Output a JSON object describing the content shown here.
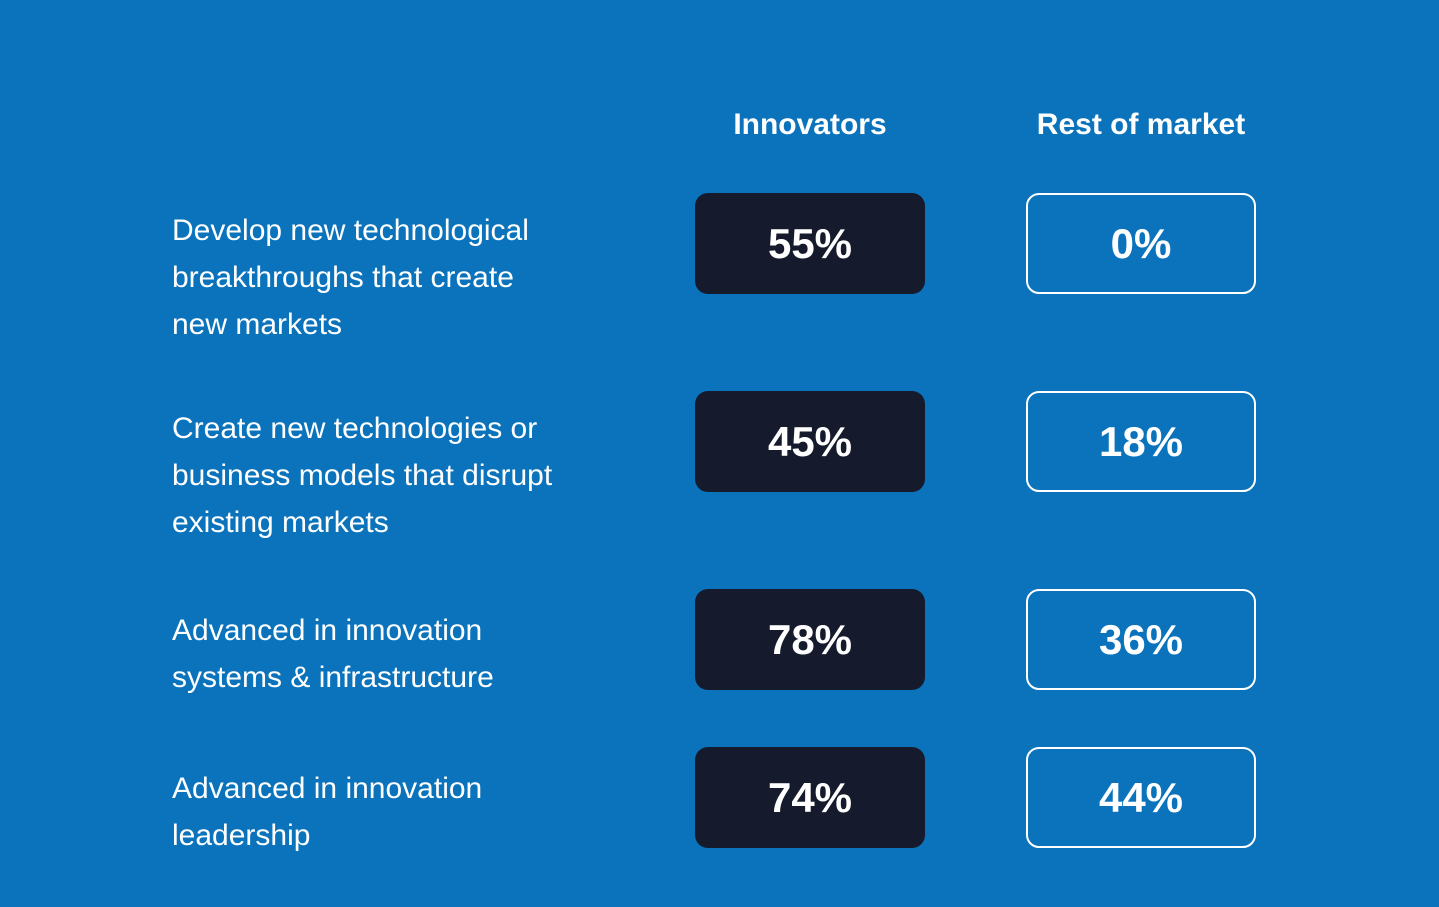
{
  "colors": {
    "background": "#0a73bc",
    "box_dark": "#151b2c",
    "text": "#ffffff"
  },
  "columns": {
    "innovators": "Innovators",
    "rest_of_market": "Rest of market"
  },
  "rows": [
    {
      "label": "Develop new technological\nbreakthroughs that create\nnew markets",
      "innovators": "55%",
      "rest_of_market": "0%"
    },
    {
      "label": "Create new technologies or\nbusiness models that disrupt\nexisting markets",
      "innovators": "45%",
      "rest_of_market": "18%"
    },
    {
      "label": "Advanced in innovation\nsystems & infrastructure",
      "innovators": "78%",
      "rest_of_market": "36%"
    },
    {
      "label": "Advanced in innovation\nleadership",
      "innovators": "74%",
      "rest_of_market": "44%"
    }
  ],
  "chart_data": {
    "type": "table",
    "categories": [
      "Develop new technological breakthroughs that create new markets",
      "Create new technologies or business models that disrupt existing markets",
      "Advanced in innovation systems & infrastructure",
      "Advanced in innovation leadership"
    ],
    "series": [
      {
        "name": "Innovators",
        "values": [
          55,
          45,
          78,
          74
        ]
      },
      {
        "name": "Rest of market",
        "values": [
          0,
          18,
          36,
          44
        ]
      }
    ],
    "value_unit": "percent",
    "layout": "matrix of labeled percentage boxes; filled dark boxes for Innovators, outlined boxes for Rest of market, on solid blue background"
  }
}
